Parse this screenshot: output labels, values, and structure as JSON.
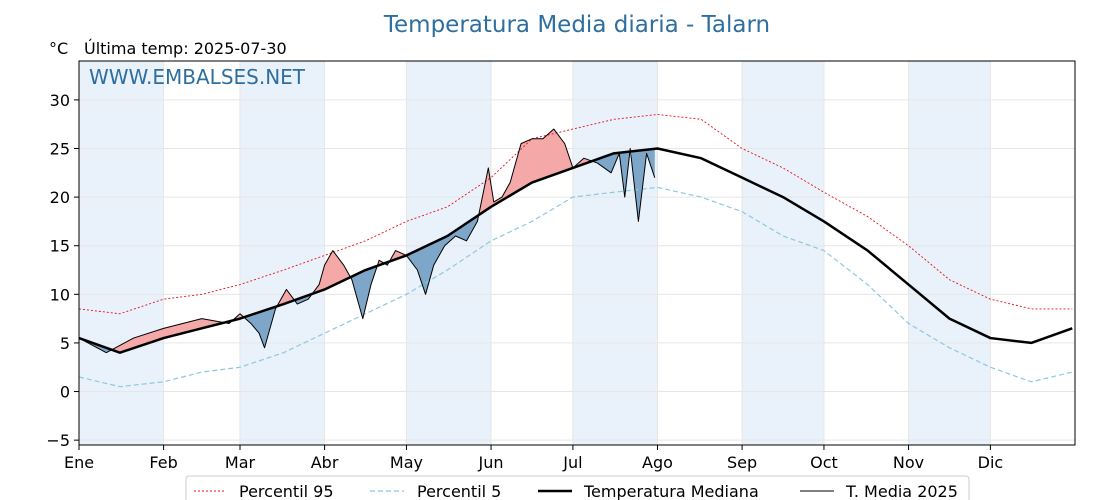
{
  "chart_data": {
    "type": "line",
    "title": "Temperatura Media diaria - Talarn",
    "ylabel": "°C",
    "subtitle": "Última temp: 2025-07-30",
    "watermark": "WWW.EMBALSES.NET",
    "ylim": [
      -5.5,
      34
    ],
    "xlim": [
      0,
      365
    ],
    "yticks": [
      -5,
      0,
      5,
      10,
      15,
      20,
      25,
      30
    ],
    "month_ticks": [
      {
        "label": "Ene",
        "day": 0
      },
      {
        "label": "Feb",
        "day": 31
      },
      {
        "label": "Mar",
        "day": 59
      },
      {
        "label": "Abr",
        "day": 90
      },
      {
        "label": "May",
        "day": 120
      },
      {
        "label": "Jun",
        "day": 151
      },
      {
        "label": "Jul",
        "day": 181
      },
      {
        "label": "Ago",
        "day": 212
      },
      {
        "label": "Sep",
        "day": 243
      },
      {
        "label": "Oct",
        "day": 273
      },
      {
        "label": "Nov",
        "day": 304
      },
      {
        "label": "Dic",
        "day": 334
      }
    ],
    "grid": true,
    "legend_position": "bottom-center",
    "colors": {
      "p95": "#e8101a",
      "p5": "#8ec8e0",
      "median": "#000000",
      "current": "#000000",
      "warm_fill": "#f4a8a8",
      "cold_fill": "#7ea6c8",
      "band": "#e9f1fa",
      "title": "#2e6fa0"
    },
    "series": [
      {
        "name": "Percentil 95",
        "x": [
          0,
          15,
          31,
          45,
          59,
          75,
          90,
          105,
          120,
          135,
          151,
          166,
          181,
          196,
          212,
          228,
          243,
          258,
          273,
          289,
          304,
          319,
          334,
          349,
          364
        ],
        "values": [
          8.5,
          8.0,
          9.5,
          10.0,
          11.0,
          12.5,
          14.0,
          15.5,
          17.5,
          19.0,
          22.0,
          26.0,
          27.0,
          28.0,
          28.5,
          28.0,
          25.0,
          23.0,
          20.5,
          18.0,
          15.0,
          11.5,
          9.5,
          8.5,
          8.5
        ]
      },
      {
        "name": "Percentil 5",
        "x": [
          0,
          15,
          31,
          45,
          59,
          75,
          90,
          105,
          120,
          135,
          151,
          166,
          181,
          196,
          212,
          228,
          243,
          258,
          273,
          289,
          304,
          319,
          334,
          349,
          364
        ],
        "values": [
          1.5,
          0.5,
          1.0,
          2.0,
          2.5,
          4.0,
          6.0,
          8.0,
          10.0,
          12.5,
          15.5,
          17.5,
          20.0,
          20.5,
          21.0,
          20.0,
          18.5,
          16.0,
          14.5,
          11.0,
          7.0,
          4.5,
          2.5,
          1.0,
          2.0
        ]
      },
      {
        "name": "Temperatura Mediana",
        "x": [
          0,
          15,
          31,
          45,
          59,
          75,
          90,
          105,
          120,
          135,
          151,
          166,
          181,
          196,
          212,
          228,
          243,
          258,
          273,
          289,
          304,
          319,
          334,
          349,
          364
        ],
        "values": [
          5.5,
          4.0,
          5.5,
          6.5,
          7.5,
          9.0,
          10.5,
          12.5,
          14.0,
          16.0,
          19.0,
          21.5,
          23.0,
          24.5,
          25.0,
          24.0,
          22.0,
          20.0,
          17.5,
          14.5,
          11.0,
          7.5,
          5.5,
          5.0,
          6.5
        ]
      },
      {
        "name": "T. Media 2025",
        "x": [
          0,
          10,
          20,
          31,
          45,
          55,
          59,
          63,
          66,
          68,
          72,
          76,
          80,
          84,
          88,
          90,
          93,
          97,
          100,
          104,
          107,
          110,
          113,
          116,
          120,
          124,
          127,
          130,
          134,
          138,
          142,
          146,
          150,
          152,
          155,
          158,
          162,
          166,
          170,
          174,
          178,
          181,
          185,
          190,
          195,
          198,
          200,
          202,
          205,
          208,
          211
        ],
        "values": [
          5.5,
          4.0,
          5.5,
          6.5,
          7.5,
          7.0,
          8.0,
          7.0,
          6.0,
          4.5,
          8.5,
          10.5,
          9.0,
          9.5,
          11.0,
          13.0,
          14.5,
          13.0,
          11.5,
          7.5,
          11.0,
          13.5,
          13.0,
          14.5,
          14.0,
          12.5,
          10.0,
          13.0,
          15.0,
          16.0,
          15.5,
          17.5,
          23.0,
          19.5,
          20.0,
          21.5,
          25.5,
          26.0,
          26.0,
          27.0,
          25.5,
          23.0,
          24.0,
          23.5,
          22.5,
          24.5,
          20.0,
          25.0,
          17.5,
          24.5,
          22.0
        ]
      }
    ]
  },
  "legend": {
    "p95": "Percentil 95",
    "p5": "Percentil 5",
    "median": "Temperatura Mediana",
    "current": "T. Media 2025"
  }
}
